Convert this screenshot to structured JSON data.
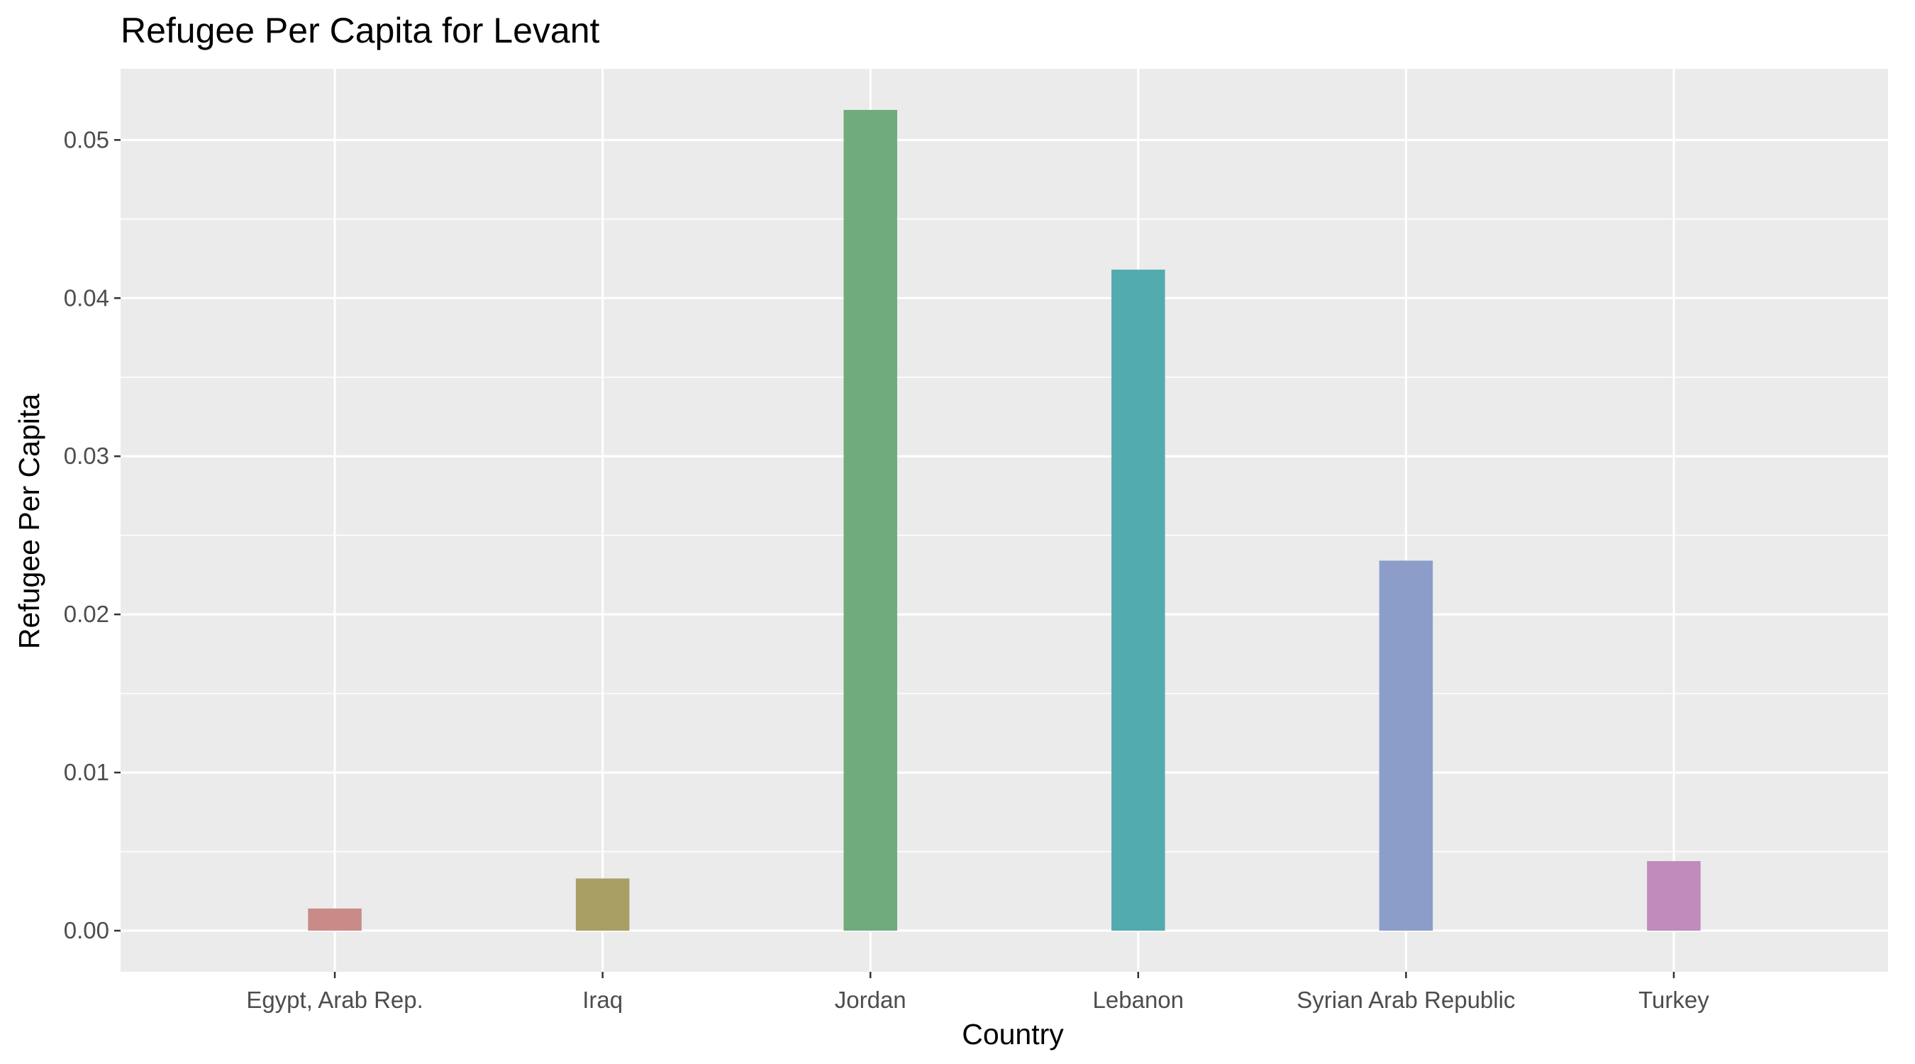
{
  "chart_data": {
    "type": "bar",
    "title": "Refugee Per Capita for Levant",
    "xlabel": "Country",
    "ylabel": "Refugee Per Capita",
    "categories": [
      "Egypt, Arab Rep.",
      "Iraq",
      "Jordan",
      "Lebanon",
      "Syrian Arab Republic",
      "Turkey"
    ],
    "values": [
      0.0014,
      0.0033,
      0.0519,
      0.0418,
      0.0234,
      0.0044
    ],
    "colors": [
      "#C98B87",
      "#A99E64",
      "#70AB7E",
      "#52ABAE",
      "#8C9DC9",
      "#C18BBB"
    ],
    "ylim": [
      -0.0026,
      0.0545
    ],
    "yticks": [
      0.0,
      0.01,
      0.02,
      0.03,
      0.04,
      0.05
    ],
    "ytick_labels": [
      "0.00",
      "0.01",
      "0.02",
      "0.03",
      "0.04",
      "0.05"
    ],
    "panel_background": "#EBEBEB",
    "grid_color": "#FFFFFF",
    "grid": true,
    "legend": "none"
  }
}
